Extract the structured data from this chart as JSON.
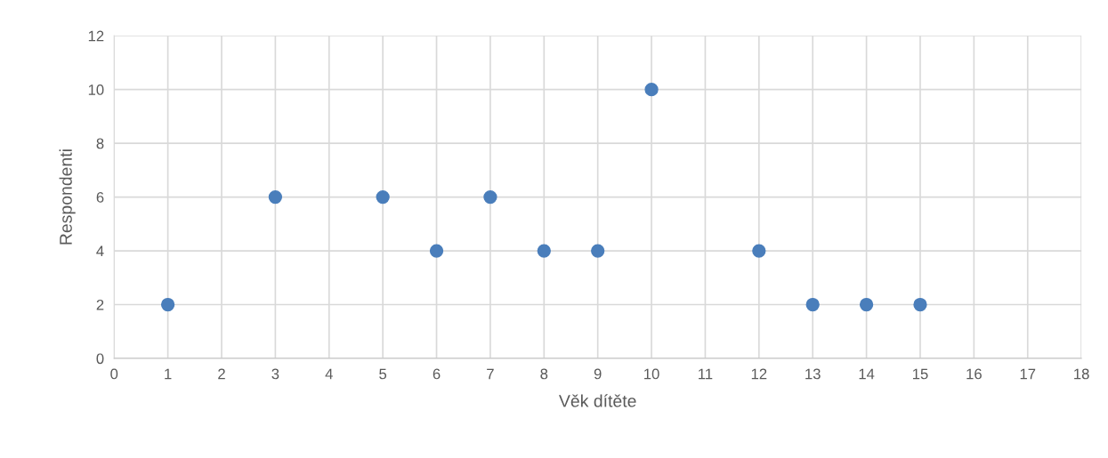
{
  "chart_data": {
    "type": "scatter",
    "xlabel": "Věk dítěte",
    "ylabel": "Respondenti",
    "x": [
      1,
      3,
      5,
      6,
      7,
      8,
      9,
      10,
      12,
      13,
      14,
      15
    ],
    "values": [
      2,
      6,
      6,
      4,
      6,
      4,
      4,
      10,
      4,
      2,
      2,
      2
    ],
    "color": "#4a7ebb",
    "marker": "circle",
    "xlim": [
      0,
      18
    ],
    "xticks": [
      0,
      1,
      2,
      3,
      4,
      5,
      6,
      7,
      8,
      9,
      10,
      11,
      12,
      13,
      14,
      15,
      16,
      17,
      18
    ],
    "ylim": [
      0,
      12
    ],
    "yticks": [
      0,
      2,
      4,
      6,
      8,
      10,
      12
    ],
    "grid": true
  }
}
